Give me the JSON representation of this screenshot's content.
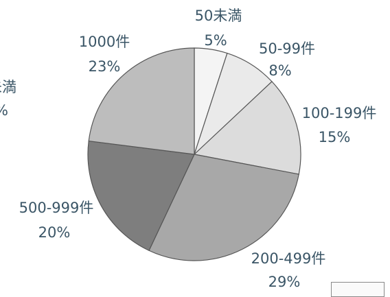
{
  "chart_data": {
    "type": "pie",
    "start_angle_deg": 0,
    "direction": "clockwise",
    "slices": [
      {
        "label": "50未満",
        "value": 5,
        "pct_label": "5%",
        "color": "#f4f4f4"
      },
      {
        "label": "50-99件",
        "value": 8,
        "pct_label": "8%",
        "color": "#eaeaea"
      },
      {
        "label": "100-199件",
        "value": 15,
        "pct_label": "15%",
        "color": "#dcdcdc"
      },
      {
        "label": "200-499件",
        "value": 29,
        "pct_label": "29%",
        "color": "#a8a8a8"
      },
      {
        "label": "500-999件",
        "value": 20,
        "pct_label": "20%",
        "color": "#7e7e7e"
      },
      {
        "label": "1000件",
        "value": 23,
        "pct_label": "23%",
        "color": "#bdbdbd"
      }
    ],
    "partial_label": {
      "name": "未満",
      "pct": "%"
    }
  }
}
